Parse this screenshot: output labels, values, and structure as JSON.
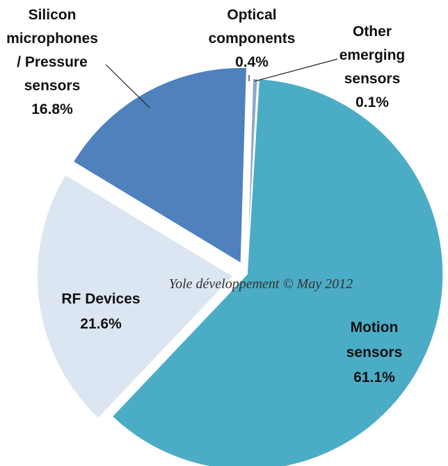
{
  "chart_data": {
    "type": "pie",
    "title": "",
    "slices": [
      {
        "label": "Motion sensors",
        "label_lines": [
          "Motion",
          "sensors"
        ],
        "value": 61.1,
        "value_text": "61.1%",
        "color": "#4BACC6"
      },
      {
        "label": "RF Devices",
        "label_lines": [
          "RF Devices"
        ],
        "value": 21.6,
        "value_text": "21.6%",
        "color": "#DCE6F2"
      },
      {
        "label": "Silicon microphones / Pressure sensors",
        "label_lines": [
          "Silicon",
          "microphones",
          "/ Pressure",
          "sensors"
        ],
        "value": 16.8,
        "value_text": "16.8%",
        "color": "#4F81BD"
      },
      {
        "label": "Optical components",
        "label_lines": [
          "Optical",
          "components"
        ],
        "value": 0.4,
        "value_text": "0.4%",
        "color": "#8EA9C8"
      },
      {
        "label": "Other emerging sensors",
        "label_lines": [
          "Other",
          "emerging",
          "sensors"
        ],
        "value": 0.1,
        "value_text": "0.1%",
        "color": "#C0504D"
      }
    ],
    "watermark": "Yole développement  © May 2012"
  }
}
